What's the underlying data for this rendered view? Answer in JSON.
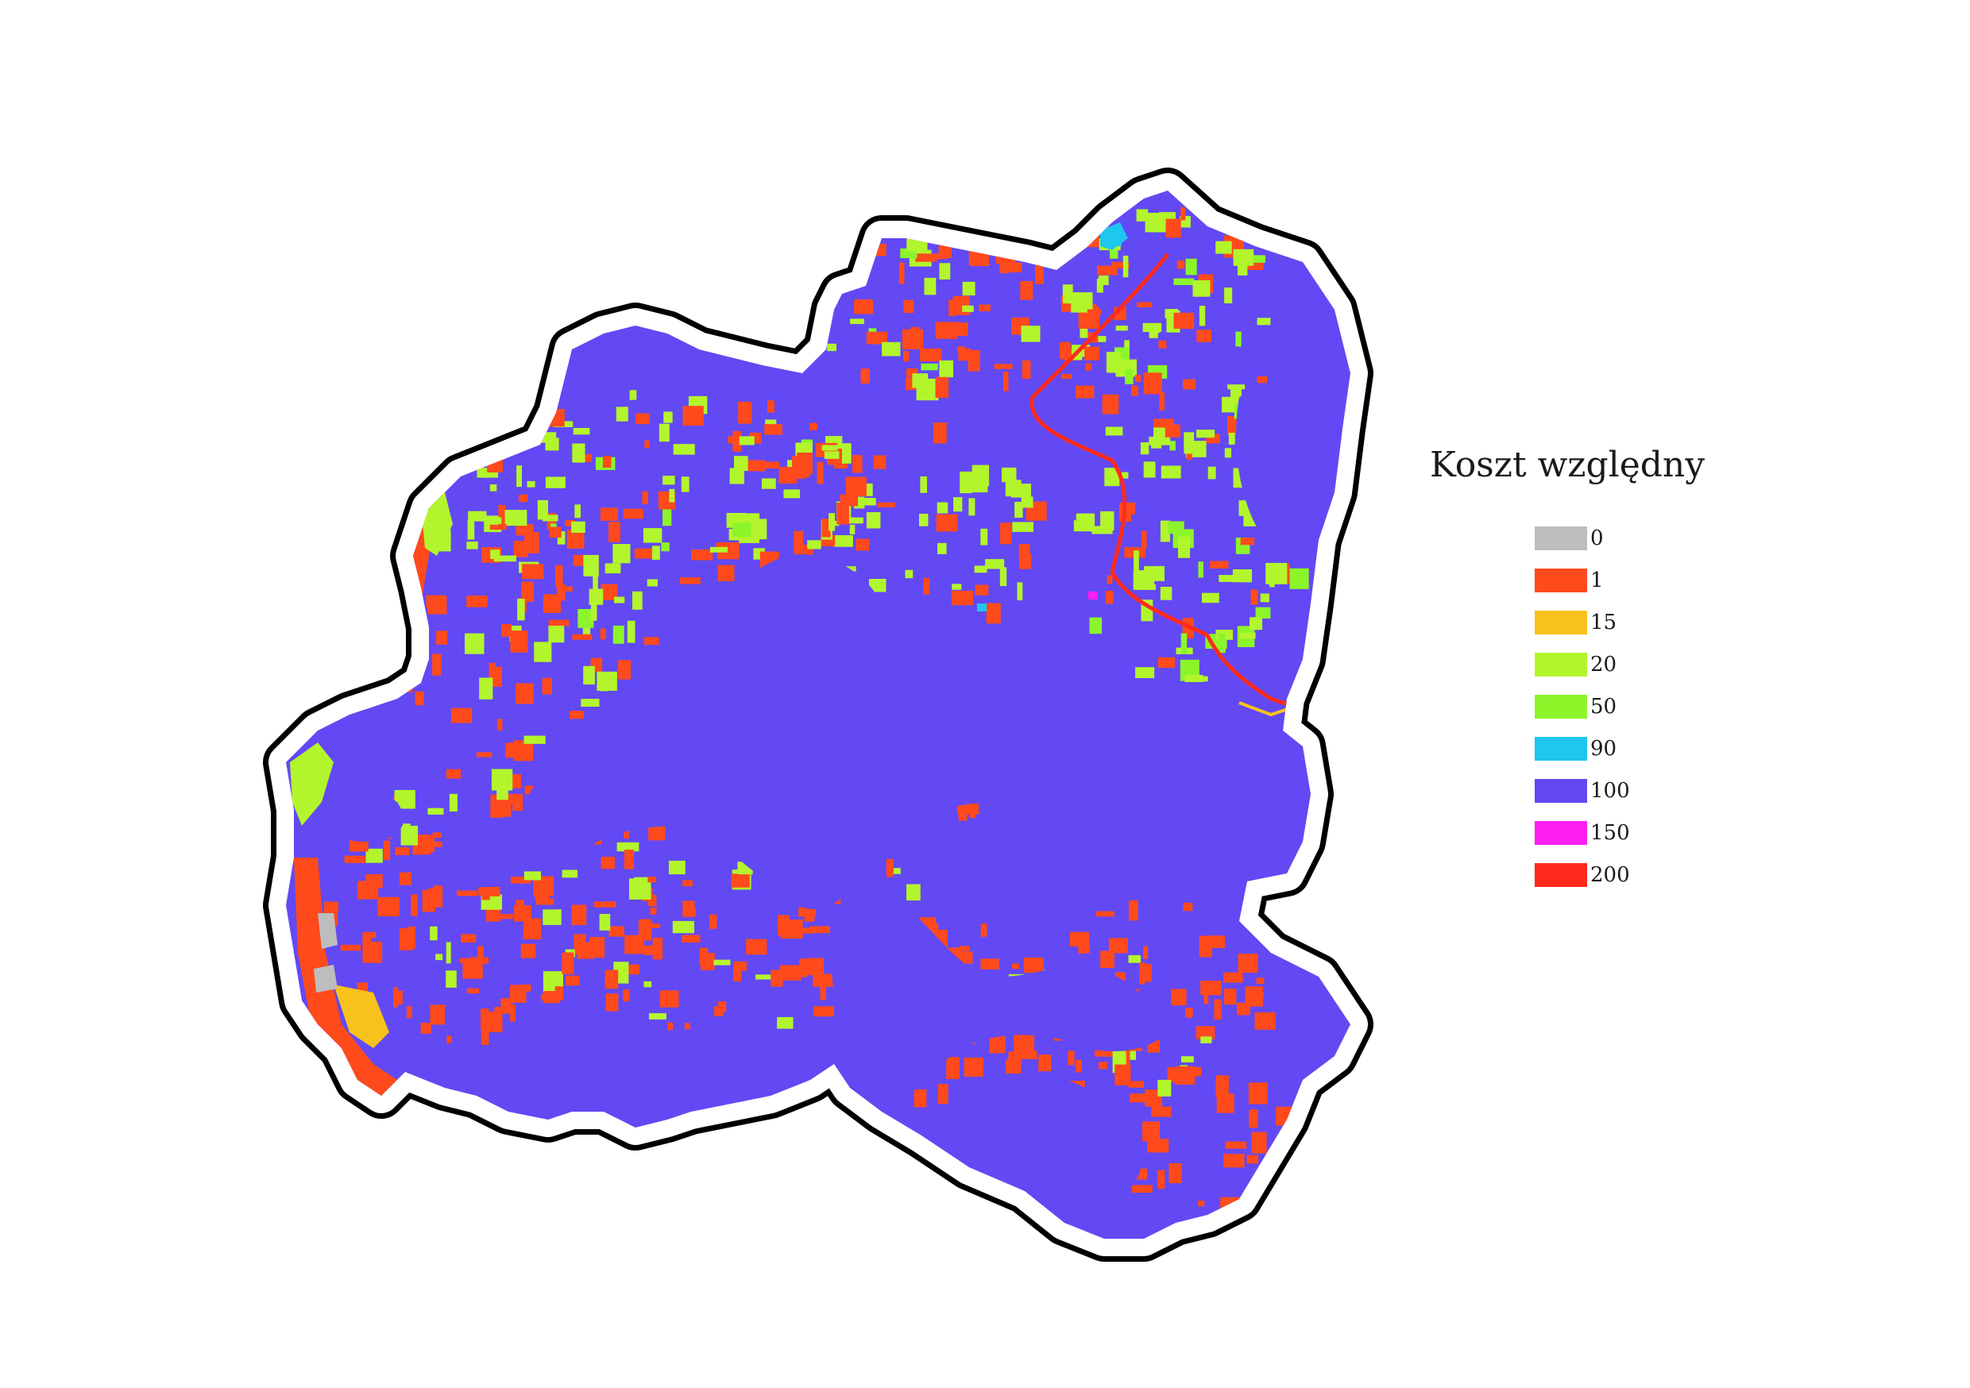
{
  "legend": {
    "title": "Koszt względny",
    "items": [
      {
        "label": "0",
        "color": "#bdbdbd"
      },
      {
        "label": "1",
        "color": "#ff4a1c"
      },
      {
        "label": "15",
        "color": "#f7c21c"
      },
      {
        "label": "20",
        "color": "#b3f52c"
      },
      {
        "label": "50",
        "color": "#8cf52a"
      },
      {
        "label": "90",
        "color": "#1ec7ee"
      },
      {
        "label": "100",
        "color": "#6249f3"
      },
      {
        "label": "150",
        "color": "#ff1ef1"
      },
      {
        "label": "200",
        "color": "#ff2a1c"
      }
    ]
  },
  "map": {
    "outline_color": "#000000",
    "background_class_label": "100"
  }
}
